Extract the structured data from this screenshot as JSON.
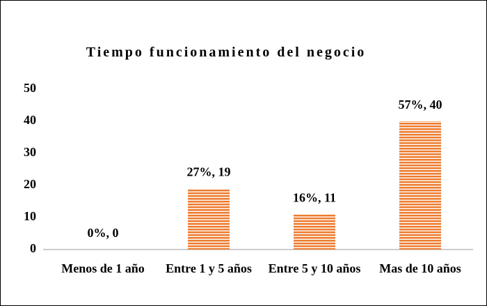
{
  "chart_data": {
    "type": "bar",
    "title": "Tiempo funcionamiento del negocio",
    "categories": [
      "Menos de 1 año",
      "Entre 1 y 5 años",
      "Entre 5 y 10 años",
      "Mas de 10 años"
    ],
    "values": [
      0,
      19,
      11,
      40
    ],
    "value_labels": [
      "0%, 0",
      "27%, 19",
      "16%, 11",
      "57%, 40"
    ],
    "color": "#ed7d31",
    "ylim": [
      0,
      50
    ],
    "yticks": [
      0,
      10,
      20,
      30,
      40,
      50
    ],
    "grid": false
  }
}
